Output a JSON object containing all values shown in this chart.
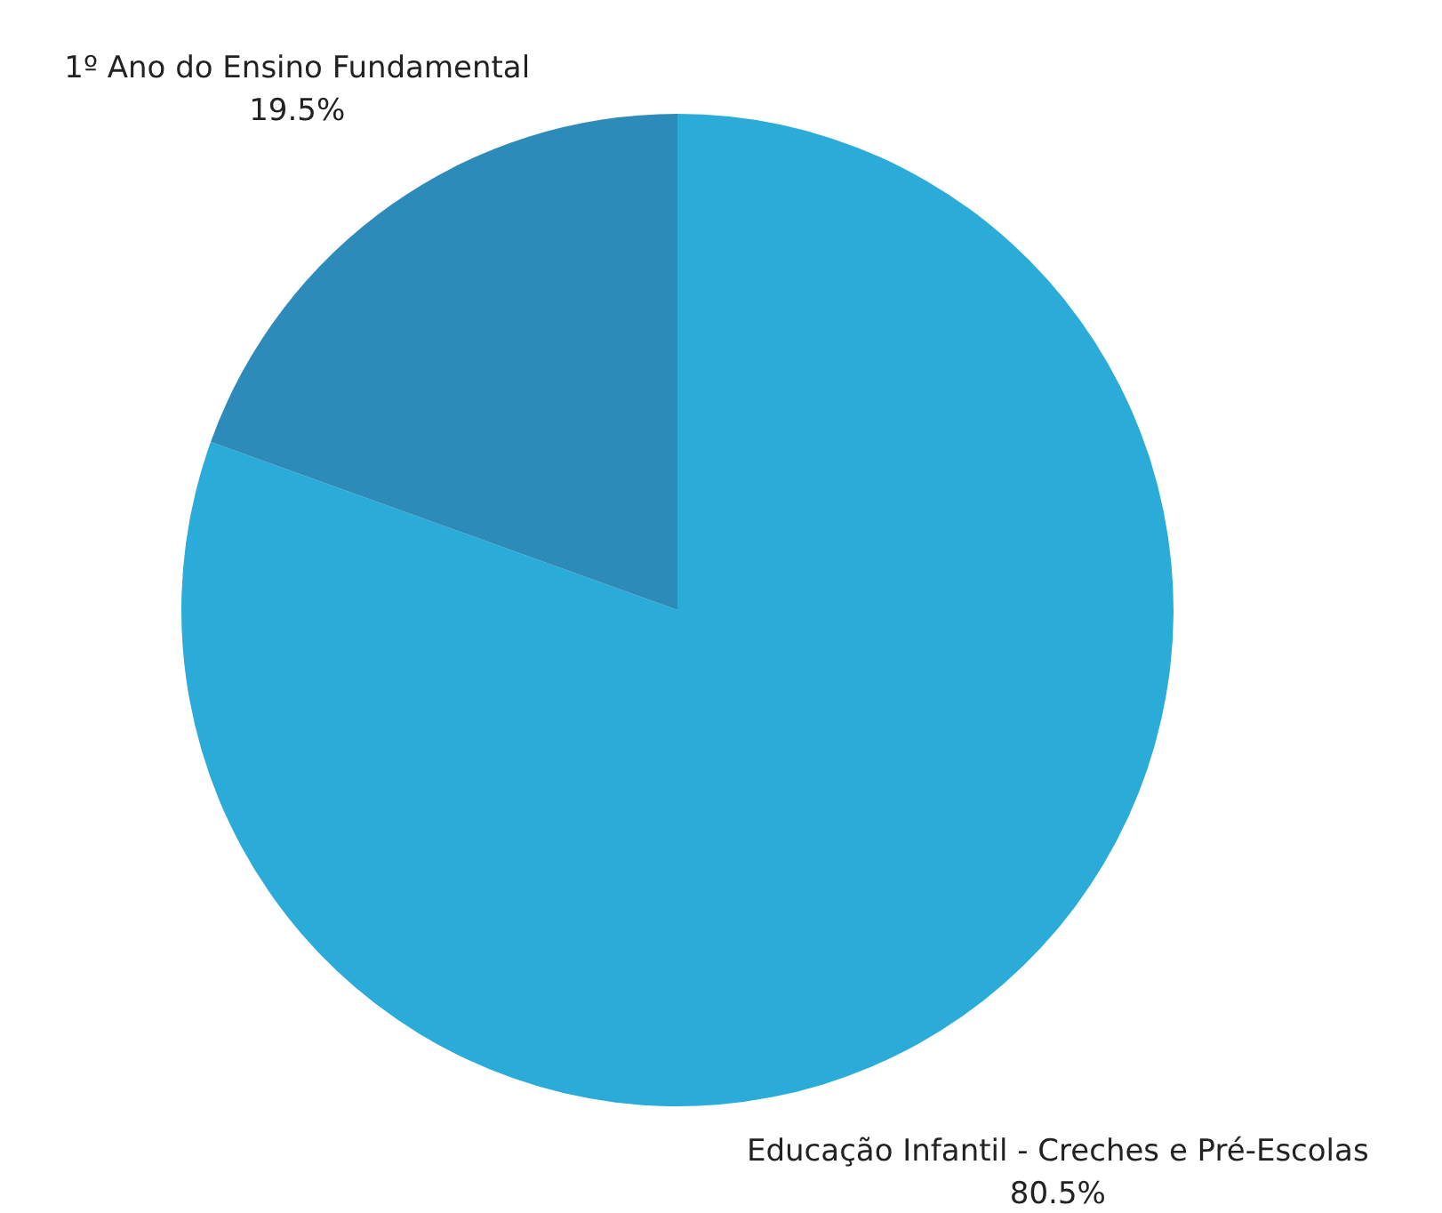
{
  "chart_data": {
    "type": "pie",
    "categories": [
      "Educação Infantil - Creches e Pré-Escolas",
      "1º Ano do Ensino Fundamental"
    ],
    "values": [
      80.5,
      19.5
    ],
    "colors": [
      "#2aabd8",
      "#2d8bba"
    ],
    "value_labels": [
      "80.5%",
      "19.5%"
    ]
  }
}
